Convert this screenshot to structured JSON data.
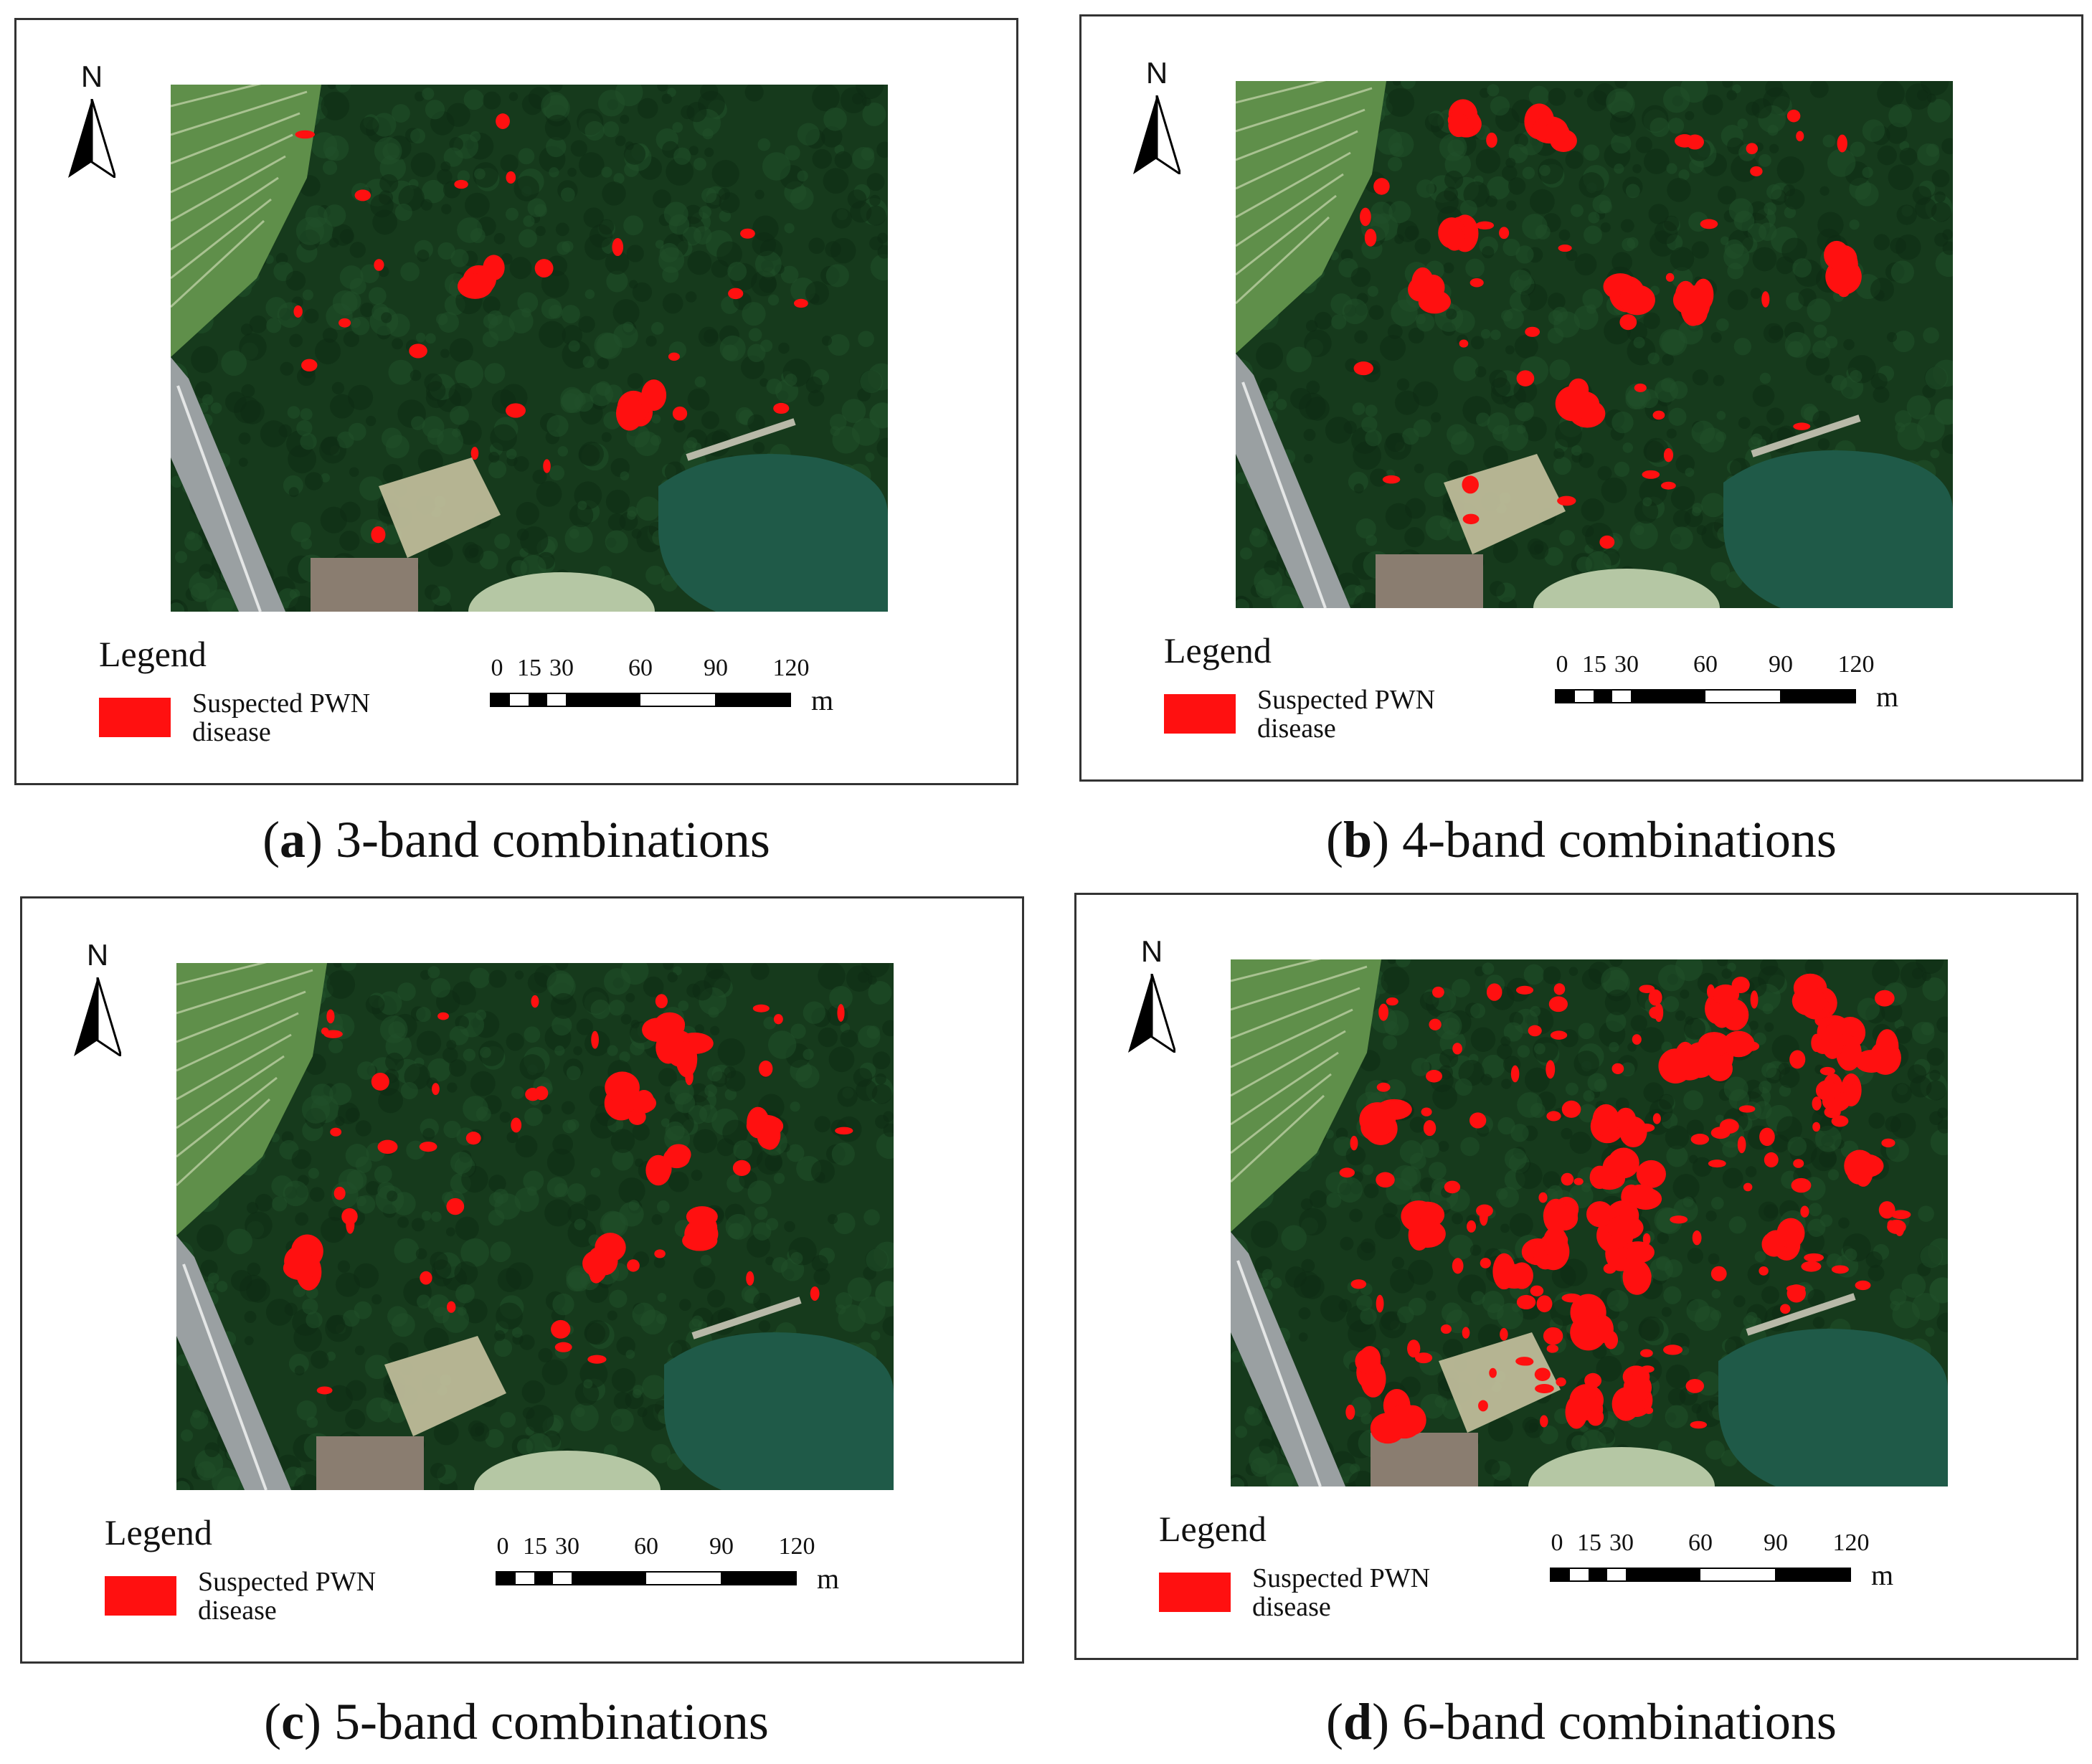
{
  "colors": {
    "disease": "#ff1010",
    "forest_dark": "#163a1c",
    "forest_mid": "#21502a",
    "field": "#5f8f4a",
    "water": "#1f5a48",
    "road": "#9aa0a2",
    "lawn": "#b5c7a4"
  },
  "common": {
    "north_label": "N",
    "legend_title": "Legend",
    "legend_item": "Suspected PWN disease",
    "scale_ticks": [
      "0",
      "15",
      "30",
      "60",
      "90",
      "120"
    ],
    "scale_unit": "m"
  },
  "panels": [
    {
      "letter": "a",
      "caption_text": " 3-band combinations",
      "detection_count": 24
    },
    {
      "letter": "b",
      "caption_text": " 4-band combinations",
      "detection_count": 45
    },
    {
      "letter": "c",
      "caption_text": " 5-band combinations",
      "detection_count": 48
    },
    {
      "letter": "d",
      "caption_text": " 6-band combinations",
      "detection_count": 150
    }
  ]
}
